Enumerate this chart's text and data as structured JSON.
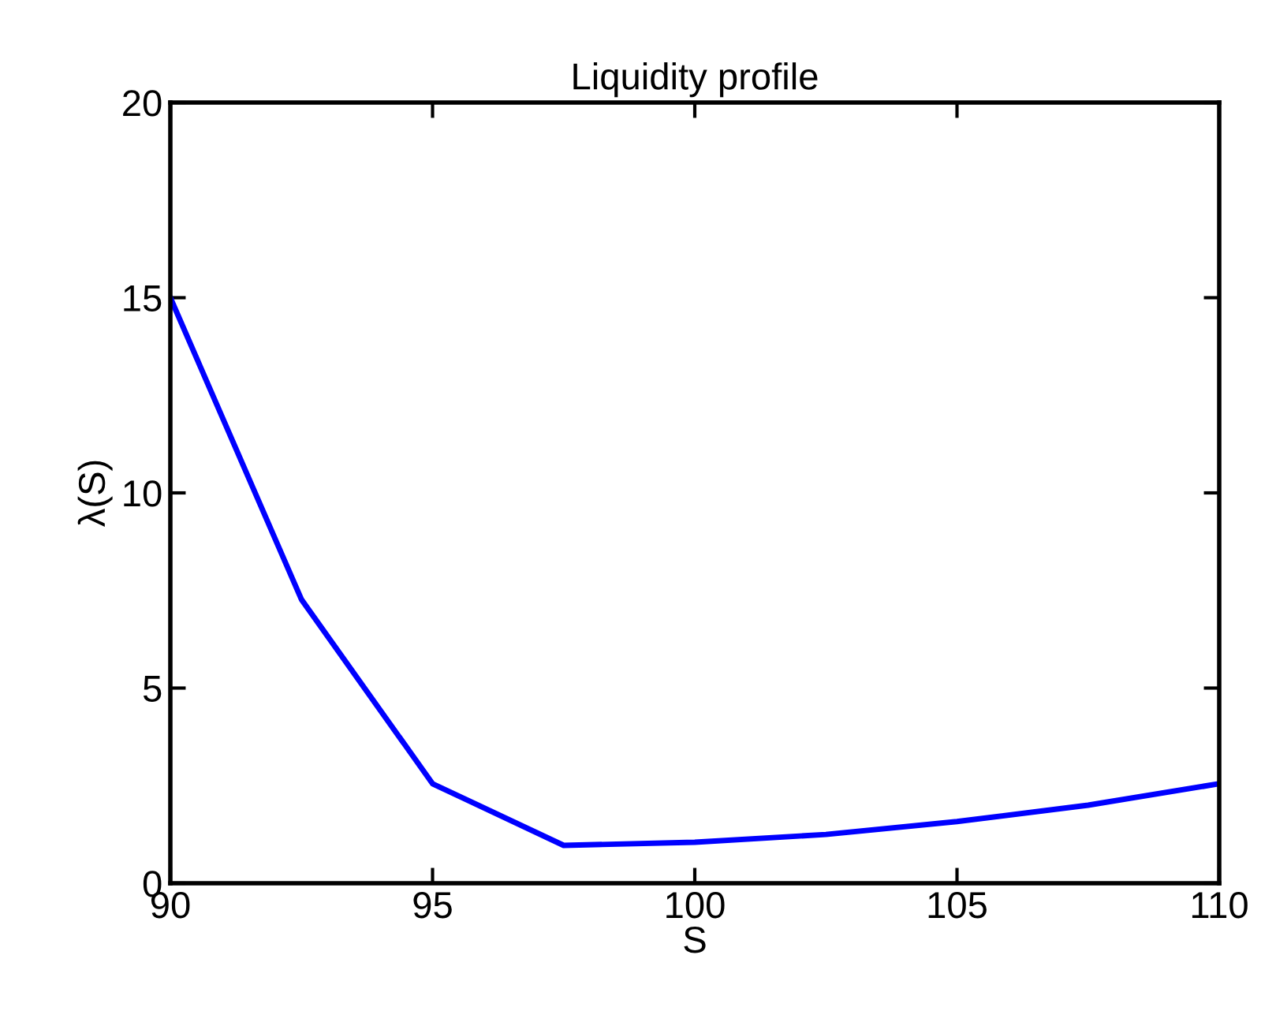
{
  "chart_data": {
    "type": "line",
    "title": "Liquidity profile",
    "xlabel": "S",
    "ylabel": "λ(S)",
    "x": [
      90,
      92.5,
      95,
      97.5,
      100,
      102.5,
      105,
      107.5,
      110
    ],
    "series": [
      {
        "color": "#0000ff",
        "values": [
          15,
          7.27,
          2.55,
          0.97,
          1.05,
          1.25,
          1.58,
          2.0,
          2.55
        ]
      }
    ],
    "xlim": [
      90,
      110
    ],
    "xticks": [
      90,
      95,
      100,
      105,
      110
    ],
    "ylim": [
      0,
      20
    ],
    "yticks": [
      0,
      5,
      10,
      15,
      20
    ],
    "grid": false,
    "legend": false,
    "marker": "none",
    "line_style": "solid"
  }
}
